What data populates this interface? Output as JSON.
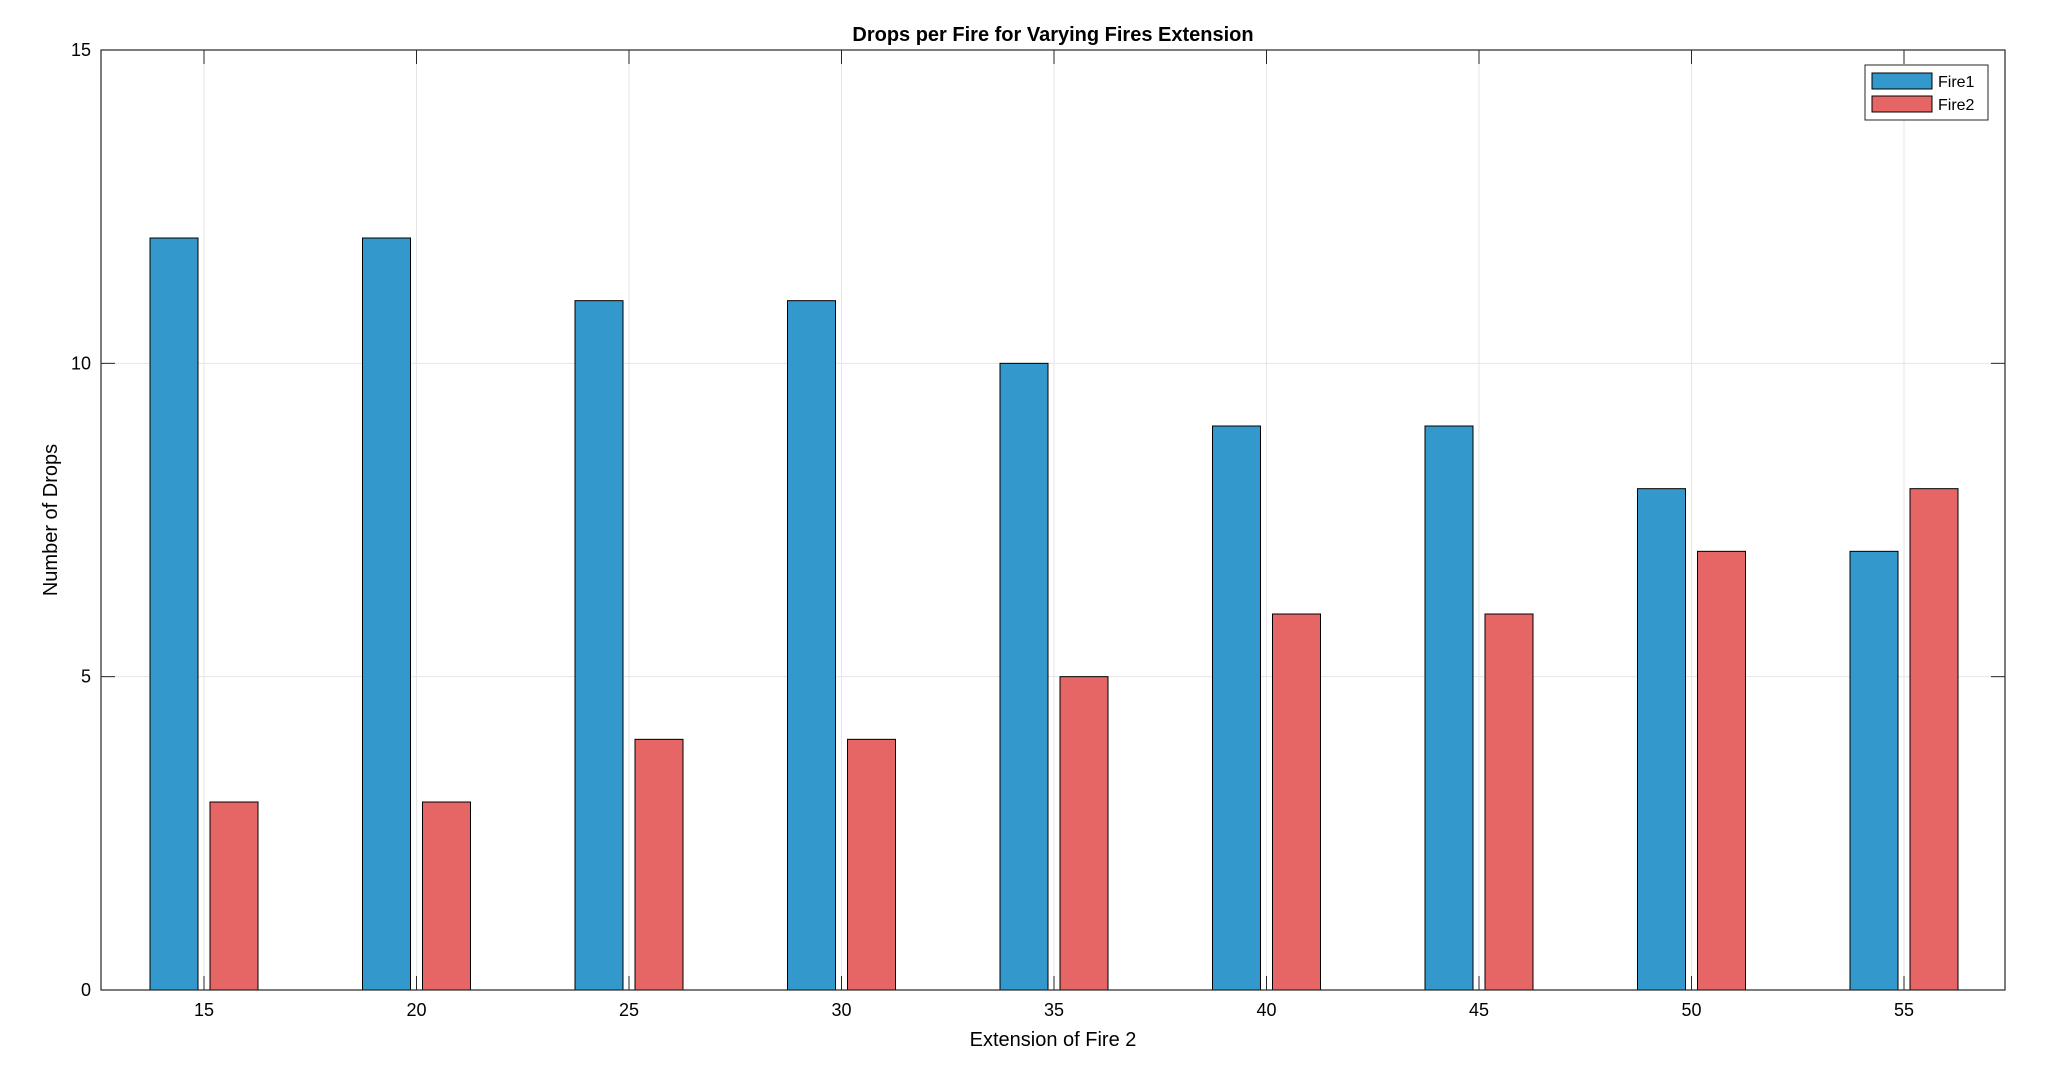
{
  "chart_data": {
    "type": "bar",
    "title": "Drops per Fire for Varying Fires Extension",
    "xlabel": "Extension of Fire 2",
    "ylabel": "Number of Drops",
    "categories": [
      "15",
      "20",
      "25",
      "30",
      "35",
      "40",
      "45",
      "50",
      "55"
    ],
    "series": [
      {
        "name": "Fire1",
        "color": "#3399cc",
        "values": [
          12,
          12,
          11,
          11,
          10,
          9,
          9,
          8,
          7
        ]
      },
      {
        "name": "Fire2",
        "color": "#e66666",
        "values": [
          3,
          3,
          4,
          4,
          5,
          6,
          6,
          7,
          8
        ]
      }
    ],
    "ylim": [
      0,
      15
    ],
    "yticks": [
      0,
      5,
      10,
      15
    ],
    "grid": true,
    "legend_position": "top-right"
  }
}
